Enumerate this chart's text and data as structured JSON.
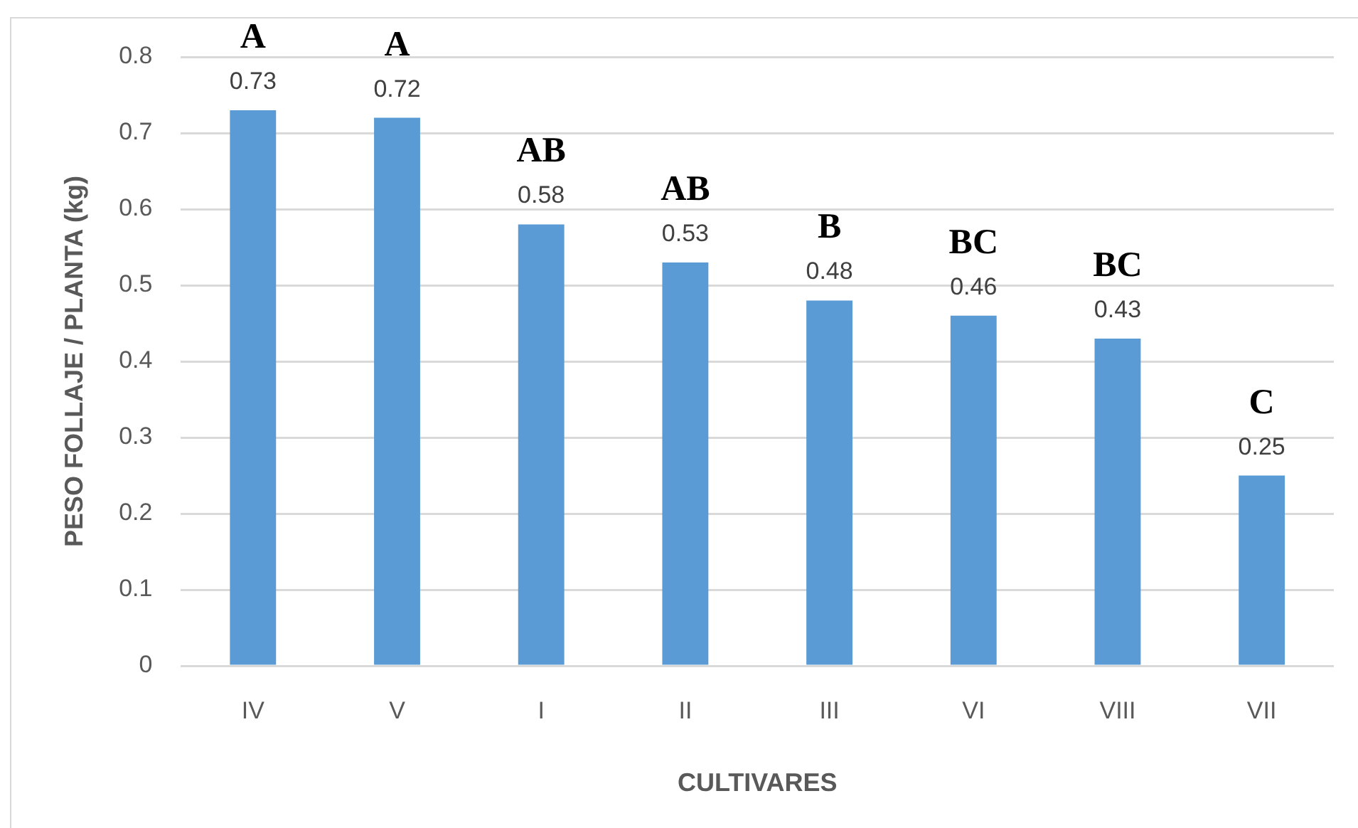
{
  "chart_data": {
    "type": "bar",
    "xlabel": "CULTIVARES",
    "ylabel": "PESO FOLLAJE / PLANTA (kg)",
    "categories": [
      "IV",
      "V",
      "I",
      "II",
      "III",
      "VI",
      "VIII",
      "VII"
    ],
    "values": [
      0.73,
      0.72,
      0.58,
      0.53,
      0.48,
      0.46,
      0.43,
      0.25
    ],
    "color": "#5b9bd5",
    "ylim": [
      0,
      0.8
    ],
    "yticks": [
      0,
      0.1,
      0.2,
      0.3,
      0.4,
      0.5,
      0.6,
      0.7,
      0.8
    ],
    "grid": "y",
    "data_labels": true,
    "annotations": [
      {
        "text": "A",
        "x": "IV",
        "y": 0.73
      },
      {
        "text": "A",
        "x": "V",
        "y": 0.72
      },
      {
        "text": "AB",
        "x": "I",
        "y": 0.58
      },
      {
        "text": "AB",
        "x": "II",
        "y": 0.53
      },
      {
        "text": "B",
        "x": "III",
        "y": 0.48
      },
      {
        "text": "BC",
        "x": "VI",
        "y": 0.46
      },
      {
        "text": "BC",
        "x": "VIII",
        "y": 0.43
      },
      {
        "text": "C",
        "x": "VII",
        "y": 0.25
      }
    ]
  }
}
